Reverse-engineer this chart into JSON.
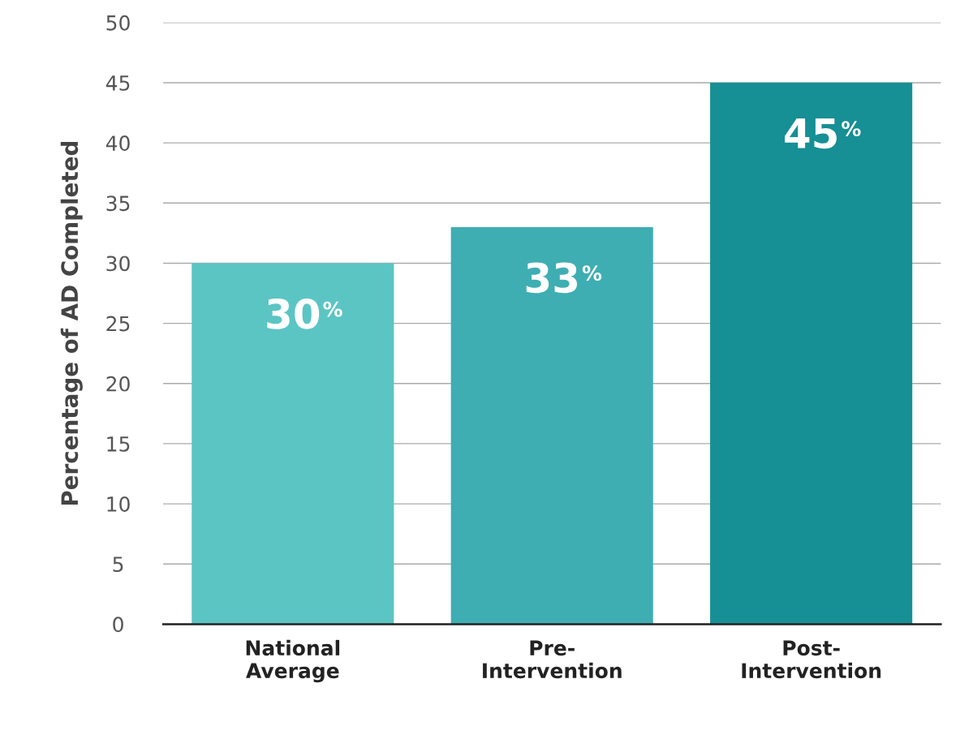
{
  "chart_data": {
    "type": "bar",
    "ylabel": "Percentage of AD Completed",
    "categories": [
      "National\nAverage",
      "Pre-\nIntervention",
      "Post-\nIntervention"
    ],
    "values": [
      30,
      33,
      45
    ],
    "colors": [
      "#5bc5c4",
      "#3eaeb3",
      "#168f95"
    ],
    "value_labels": [
      "30$^{%}$",
      "33$^{%}$",
      "45$^{%}$"
    ],
    "ylim": [
      0,
      50
    ],
    "yticks": [
      0,
      5,
      10,
      15,
      20,
      25,
      30,
      35,
      40,
      45,
      50
    ],
    "grid": "y",
    "legend": false
  }
}
